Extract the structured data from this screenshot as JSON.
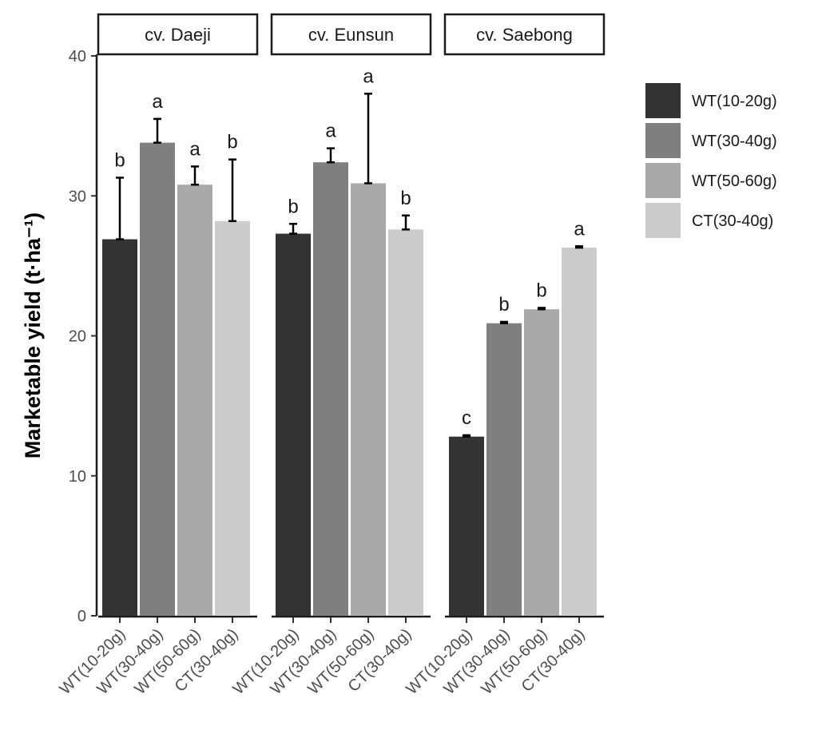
{
  "chart_data": {
    "type": "bar",
    "ylabel": "Marketable yield (t·ha⁻¹)",
    "ylim": [
      0,
      40
    ],
    "yticks": [
      0,
      10,
      20,
      30,
      40
    ],
    "categories": [
      "WT(10-20g)",
      "WT(30-40g)",
      "WT(50-60g)",
      "CT(30-40g)"
    ],
    "colors": [
      "#333333",
      "#7f7f7f",
      "#a9a9a9",
      "#cccccc"
    ],
    "legend": {
      "position": "right",
      "entries": [
        "WT(10-20g)",
        "WT(30-40g)",
        "WT(50-60g)",
        "CT(30-40g)"
      ]
    },
    "grid": false,
    "panels": [
      {
        "strip": "cv. Daeji",
        "values": [
          26.9,
          33.8,
          30.8,
          28.2
        ],
        "errors": [
          4.4,
          1.7,
          1.3,
          4.4
        ],
        "letters": [
          "b",
          "a",
          "a",
          "b"
        ]
      },
      {
        "strip": "cv. Eunsun",
        "values": [
          27.3,
          32.4,
          30.9,
          27.6
        ],
        "errors": [
          0.7,
          1.0,
          6.4,
          1.0
        ],
        "letters": [
          "b",
          "a",
          "a",
          "b"
        ]
      },
      {
        "strip": "cv. Saebong",
        "values": [
          12.8,
          20.9,
          21.9,
          26.3
        ],
        "errors": [
          0.1,
          0.1,
          0.1,
          0.1
        ],
        "letters": [
          "c",
          "b",
          "b",
          "a"
        ]
      }
    ]
  }
}
